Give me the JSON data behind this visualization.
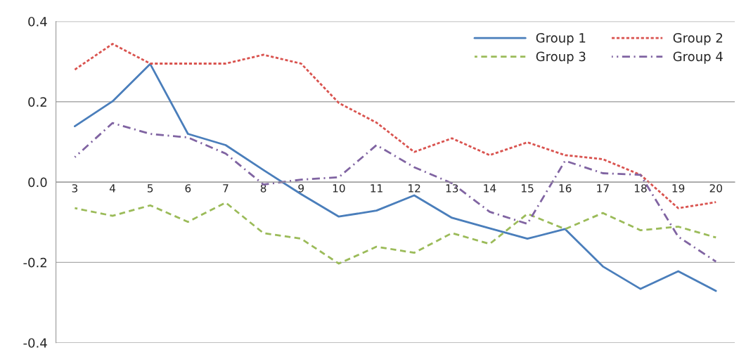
{
  "chart_data": {
    "type": "line",
    "categories": [
      "3",
      "4",
      "5",
      "6",
      "7",
      "8",
      "9",
      "10",
      "11",
      "12",
      "13",
      "14",
      "15",
      "16",
      "17",
      "18",
      "19",
      "20"
    ],
    "series": [
      {
        "name": "Group 1",
        "color": "#4a7ebb",
        "line_style": "solid",
        "values": [
          0.139,
          0.201,
          0.294,
          0.12,
          0.092,
          0.03,
          -0.03,
          -0.086,
          -0.071,
          -0.033,
          -0.089,
          -0.115,
          -0.141,
          -0.117,
          -0.21,
          -0.266,
          -0.222,
          -0.271
        ]
      },
      {
        "name": "Group 2",
        "color": "#d9534f",
        "line_style": "dotted",
        "values": [
          0.28,
          0.344,
          0.295,
          0.295,
          0.295,
          0.317,
          0.295,
          0.197,
          0.148,
          0.075,
          0.109,
          0.067,
          0.099,
          0.067,
          0.057,
          0.018,
          -0.065,
          -0.05
        ]
      },
      {
        "name": "Group 3",
        "color": "#9bbb59",
        "line_style": "dashed",
        "values": [
          -0.065,
          -0.084,
          -0.058,
          -0.099,
          -0.051,
          -0.127,
          -0.141,
          -0.203,
          -0.161,
          -0.176,
          -0.127,
          -0.154,
          -0.079,
          -0.117,
          -0.077,
          -0.12,
          -0.111,
          -0.138
        ]
      },
      {
        "name": "Group 4",
        "color": "#8064a2",
        "line_style": "dashdot",
        "values": [
          0.062,
          0.147,
          0.12,
          0.111,
          0.071,
          -0.006,
          0.006,
          0.012,
          0.092,
          0.037,
          -0.003,
          -0.074,
          -0.104,
          0.053,
          0.022,
          0.018,
          -0.136,
          -0.198
        ]
      }
    ],
    "ylim": [
      -0.4,
      0.4
    ],
    "yticks": [
      {
        "value": -0.4,
        "label": "-0.4"
      },
      {
        "value": -0.2,
        "label": "-0.2"
      },
      {
        "value": 0,
        "label": "0.0"
      },
      {
        "value": 0.2,
        "label": "0.2"
      },
      {
        "value": 0.4,
        "label": "0.4"
      }
    ],
    "grid": "y",
    "legend": "top right",
    "marker": "none"
  }
}
